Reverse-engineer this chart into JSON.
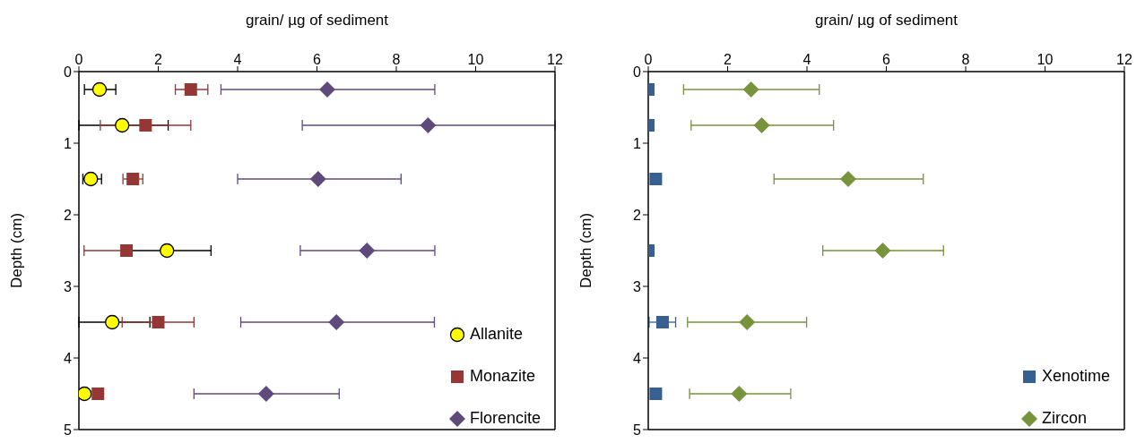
{
  "chart_data": [
    {
      "type": "scatter",
      "xlabel": "grain/ µg of sediment",
      "ylabel": "Depth (cm)",
      "xlim": [
        0,
        12
      ],
      "xticks": [
        0,
        2,
        4,
        6,
        8,
        10,
        12
      ],
      "ylim": [
        5,
        0
      ],
      "yticks": [
        0,
        1,
        2,
        3,
        4,
        5
      ],
      "grid": false,
      "legend": "bottom right",
      "series": [
        {
          "name": "Allanite",
          "color": "#ffff00",
          "marker": "circle",
          "x": [
            0.52,
            1.09,
            0.3,
            2.22,
            0.84,
            0.14
          ],
          "values": [
            0.25,
            0.75,
            1.5,
            2.5,
            3.5,
            4.5
          ],
          "xerrors": [
            [
              0.14,
              0.93
            ],
            [
              0,
              2.25
            ],
            [
              0.1,
              0.57
            ],
            [
              1.1,
              3.33
            ],
            [
              0,
              1.79
            ],
            null
          ]
        },
        {
          "name": "Monazite",
          "color": "#953735",
          "marker": "square",
          "x": [
            2.82,
            1.68,
            1.36,
            1.2,
            2.0,
            0.48
          ],
          "values": [
            0.25,
            0.75,
            1.5,
            2.5,
            3.5,
            4.5
          ],
          "xerrors": [
            [
              2.43,
              3.25
            ],
            [
              0.54,
              2.82
            ],
            [
              1.11,
              1.61
            ],
            [
              0.13,
              1.2
            ],
            [
              1.09,
              2.9
            ],
            null
          ]
        },
        {
          "name": "Florencite",
          "color": "#604a7b",
          "marker": "diamond",
          "x": [
            6.26,
            8.8,
            6.03,
            7.26,
            6.49,
            4.72
          ],
          "values": [
            0.25,
            0.75,
            1.5,
            2.5,
            3.5,
            4.5
          ],
          "xerrors": [
            [
              3.58,
              8.97
            ],
            [
              5.63,
              12
            ],
            [
              4.0,
              8.12
            ],
            [
              5.58,
              8.97
            ],
            [
              4.08,
              8.96
            ],
            [
              2.9,
              6.56
            ]
          ]
        }
      ]
    },
    {
      "type": "scatter",
      "xlabel": "grain/ µg of sediment",
      "ylabel": "Depth (cm)",
      "xlim": [
        0,
        12
      ],
      "xticks": [
        0,
        2,
        4,
        6,
        8,
        10,
        12
      ],
      "ylim": [
        5,
        0
      ],
      "yticks": [
        0,
        1,
        2,
        3,
        4,
        5
      ],
      "grid": false,
      "legend": "bottom right",
      "series": [
        {
          "name": "Xenotime",
          "color": "#376092",
          "marker": "square",
          "x": [
            0,
            0,
            0.19,
            0,
            0.36,
            0.19
          ],
          "values": [
            0.25,
            0.75,
            1.5,
            2.5,
            3.5,
            4.5
          ],
          "xerrors": [
            null,
            null,
            null,
            null,
            [
              0.02,
              0.69
            ],
            null
          ]
        },
        {
          "name": "Zircon",
          "color": "#77933c",
          "marker": "diamond",
          "x": [
            2.59,
            2.86,
            5.04,
            5.91,
            2.49,
            2.29
          ],
          "values": [
            0.25,
            0.75,
            1.5,
            2.5,
            3.5,
            4.5
          ],
          "xerrors": [
            [
              0.89,
              4.31
            ],
            [
              1.08,
              4.67
            ],
            [
              3.17,
              6.93
            ],
            [
              4.4,
              7.44
            ],
            [
              0.99,
              3.99
            ],
            [
              1.04,
              3.59
            ]
          ]
        }
      ]
    }
  ]
}
